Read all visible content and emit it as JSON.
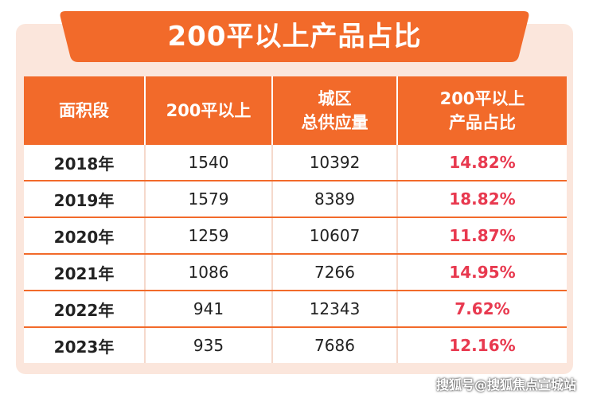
{
  "title": "200平以上产品占比",
  "table": {
    "headers": [
      {
        "line1": "面积段",
        "line2": ""
      },
      {
        "line1": "200平以上",
        "line2": ""
      },
      {
        "line1": "城区",
        "line2": "总供应量"
      },
      {
        "line1": "200平以上",
        "line2": "产品占比"
      }
    ],
    "rows": [
      {
        "year": "2018年",
        "over200": "1540",
        "total": "10392",
        "ratio": "14.82%"
      },
      {
        "year": "2019年",
        "over200": "1579",
        "total": "8389",
        "ratio": "18.82%"
      },
      {
        "year": "2020年",
        "over200": "1259",
        "total": "10607",
        "ratio": "11.87%"
      },
      {
        "year": "2021年",
        "over200": "1086",
        "total": "7266",
        "ratio": "14.95%"
      },
      {
        "year": "2022年",
        "over200": "941",
        "total": "12343",
        "ratio": "7.62%"
      },
      {
        "year": "2023年",
        "over200": "935",
        "total": "7686",
        "ratio": "12.16%"
      }
    ]
  },
  "watermark": "搜狐号@搜狐焦点宣城站",
  "colors": {
    "header_bg": "#f26a2a",
    "ratio_text": "#e8394f",
    "card_bg": "#fbe6dc",
    "banner": "#f26a2a"
  }
}
